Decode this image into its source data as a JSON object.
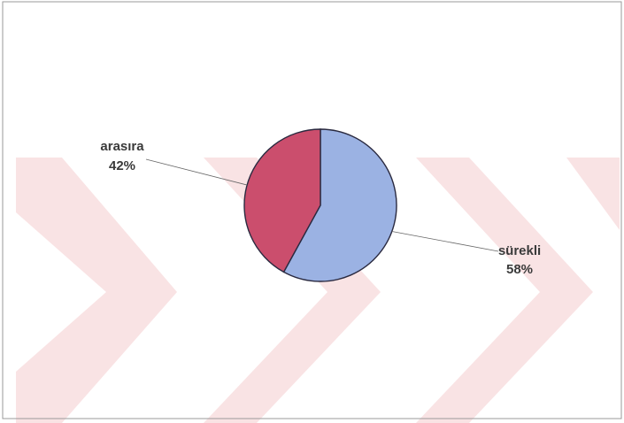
{
  "chart_data": {
    "type": "pie",
    "slices": [
      {
        "label": "sürekli",
        "value": 58,
        "value_label": "58%",
        "color": "#9bb2e3"
      },
      {
        "label": "arasıra",
        "value": 42,
        "value_label": "42%",
        "color": "#cb4e6d"
      }
    ],
    "start": "12 o'clock",
    "direction": "clockwise"
  },
  "colors": {
    "background": "#ffffff",
    "watermark": "#f6d4d6",
    "slice_border": "#2a2a40",
    "leader_line": "#666666",
    "frame": "#9a9a9a"
  }
}
